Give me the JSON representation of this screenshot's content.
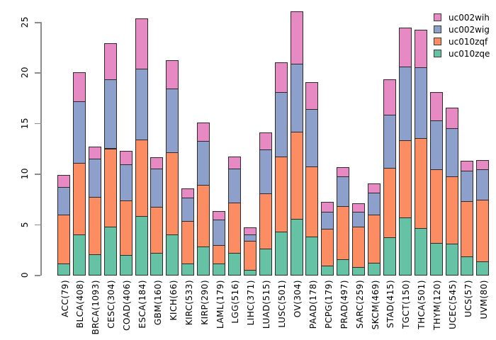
{
  "chart_data": {
    "type": "bar",
    "subtype": "stacked-vertical",
    "title": "",
    "xlabel": "",
    "ylabel": "",
    "ylim": [
      0,
      25
    ],
    "ytick_values": [
      0,
      5,
      10,
      15,
      20,
      25
    ],
    "ytick_labels": [
      "0",
      "5",
      "10",
      "15",
      "20",
      "25"
    ],
    "grid": "off",
    "legend_position": "top-right",
    "categories": [
      "ACC(79)",
      "BLCA(408)",
      "BRCA(1093)",
      "CESC(304)",
      "COAD(406)",
      "ESCA(184)",
      "GBM(160)",
      "KICH(66)",
      "KIRC(533)",
      "KIRP(290)",
      "LAML(179)",
      "LGG(516)",
      "LIHC(371)",
      "LUAD(515)",
      "LUSC(501)",
      "OV(304)",
      "PAAD(178)",
      "PCPG(179)",
      "PRAD(497)",
      "SARC(259)",
      "SKCM(469)",
      "STAD(415)",
      "TGCT(150)",
      "THCA(501)",
      "THYM(120)",
      "UCEC(545)",
      "UCS(57)",
      "UVM(80)"
    ],
    "series": [
      {
        "name": "uc010zqe",
        "color": "#66C2A5",
        "values": [
          1.1,
          4.0,
          2.0,
          4.75,
          1.95,
          5.8,
          2.2,
          4.0,
          1.15,
          2.8,
          1.1,
          2.2,
          0.5,
          2.6,
          4.25,
          5.55,
          3.75,
          0.9,
          1.55,
          0.8,
          1.2,
          3.7,
          5.7,
          4.6,
          3.15,
          3.05,
          1.85,
          1.3
        ]
      },
      {
        "name": "uc010zqf",
        "color": "#FC8D62",
        "values": [
          4.85,
          7.05,
          5.7,
          7.75,
          5.4,
          7.55,
          4.55,
          8.1,
          4.15,
          6.1,
          1.85,
          4.95,
          2.85,
          5.45,
          7.45,
          8.6,
          6.95,
          3.65,
          5.25,
          3.95,
          4.75,
          6.9,
          7.6,
          8.9,
          7.3,
          6.65,
          5.4,
          6.15
        ]
      },
      {
        "name": "uc002wig",
        "color": "#8DA0CB",
        "values": [
          2.7,
          6.1,
          3.8,
          6.85,
          3.6,
          7.05,
          3.75,
          6.3,
          2.3,
          4.35,
          2.5,
          3.35,
          0.65,
          4.35,
          6.4,
          6.75,
          5.7,
          1.65,
          2.9,
          1.45,
          2.15,
          5.25,
          7.3,
          7.0,
          4.85,
          4.8,
          3.05,
          2.95
        ]
      },
      {
        "name": "uc002wih",
        "color": "#E78AC3",
        "values": [
          1.25,
          2.85,
          1.2,
          3.55,
          1.3,
          4.95,
          1.15,
          2.8,
          0.95,
          1.8,
          0.85,
          1.2,
          0.7,
          1.65,
          2.9,
          5.15,
          2.65,
          1.0,
          0.95,
          0.9,
          0.9,
          3.45,
          3.85,
          3.75,
          2.8,
          2.0,
          1.0,
          0.95
        ]
      }
    ],
    "legend": [
      {
        "label": "uc002wih",
        "color": "#E78AC3"
      },
      {
        "label": "uc002wig",
        "color": "#8DA0CB"
      },
      {
        "label": "uc010zqf",
        "color": "#FC8D62"
      },
      {
        "label": "uc010zqe",
        "color": "#66C2A5"
      }
    ]
  }
}
